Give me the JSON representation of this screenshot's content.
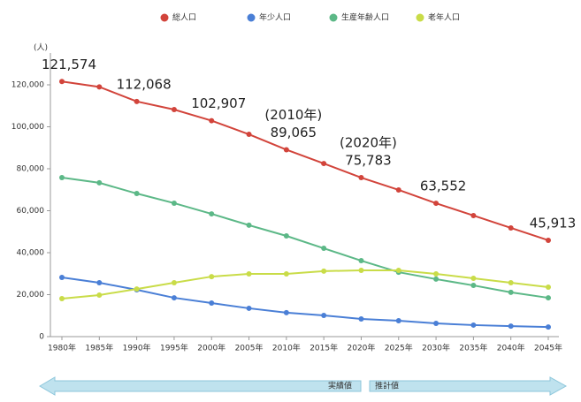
{
  "chart_data": {
    "type": "line",
    "y_unit_label": "(人)",
    "categories": [
      "1980年",
      "1985年",
      "1990年",
      "1995年",
      "2000年",
      "2005年",
      "2010年",
      "2015年",
      "2020年",
      "2025年",
      "2030年",
      "2035年",
      "2040年",
      "2045年"
    ],
    "series": [
      {
        "name": "総人口",
        "color": "#d2443b",
        "values": [
          121574,
          119000,
          112068,
          108200,
          102907,
          96400,
          89065,
          82500,
          75783,
          69900,
          63552,
          57700,
          51800,
          45913
        ],
        "value_labels": [
          "121,574",
          null,
          "112,068",
          null,
          "102,907",
          null,
          "89,065",
          null,
          "75,783",
          null,
          "63,552",
          null,
          null,
          "45,913"
        ]
      },
      {
        "name": "年少人口",
        "color": "#4a7fd6",
        "values": [
          28200,
          25700,
          22300,
          18500,
          16000,
          13500,
          11400,
          10100,
          8400,
          7600,
          6300,
          5500,
          5000,
          4600
        ]
      },
      {
        "name": "生産年齢人口",
        "color": "#5cb887",
        "values": [
          75800,
          73300,
          68200,
          63600,
          58500,
          53100,
          48000,
          42100,
          36200,
          30700,
          27400,
          24400,
          21100,
          18500
        ]
      },
      {
        "name": "老年人口",
        "color": "#c9dc48",
        "values": [
          18100,
          19800,
          22700,
          25700,
          28600,
          29900,
          29900,
          31200,
          31600,
          31600,
          29900,
          27800,
          25700,
          23600
        ]
      }
    ],
    "annotations": [
      {
        "text": "(2010年)",
        "category": "2010年"
      },
      {
        "text": "(2020年)",
        "category": "2020年"
      }
    ],
    "ylim": [
      0,
      120000
    ],
    "yticks": [
      0,
      {
        "value": 20000,
        "label": "20,000"
      },
      {
        "value": 40000,
        "label": "40,000"
      },
      {
        "value": 60000,
        "label": "60,000"
      },
      {
        "value": 80000,
        "label": "80,000"
      },
      {
        "value": 100000,
        "label": "100,000"
      },
      {
        "value": 120000,
        "label": "120,000"
      }
    ],
    "periods": [
      {
        "label": "実績値"
      },
      {
        "label": "推計値"
      }
    ]
  }
}
